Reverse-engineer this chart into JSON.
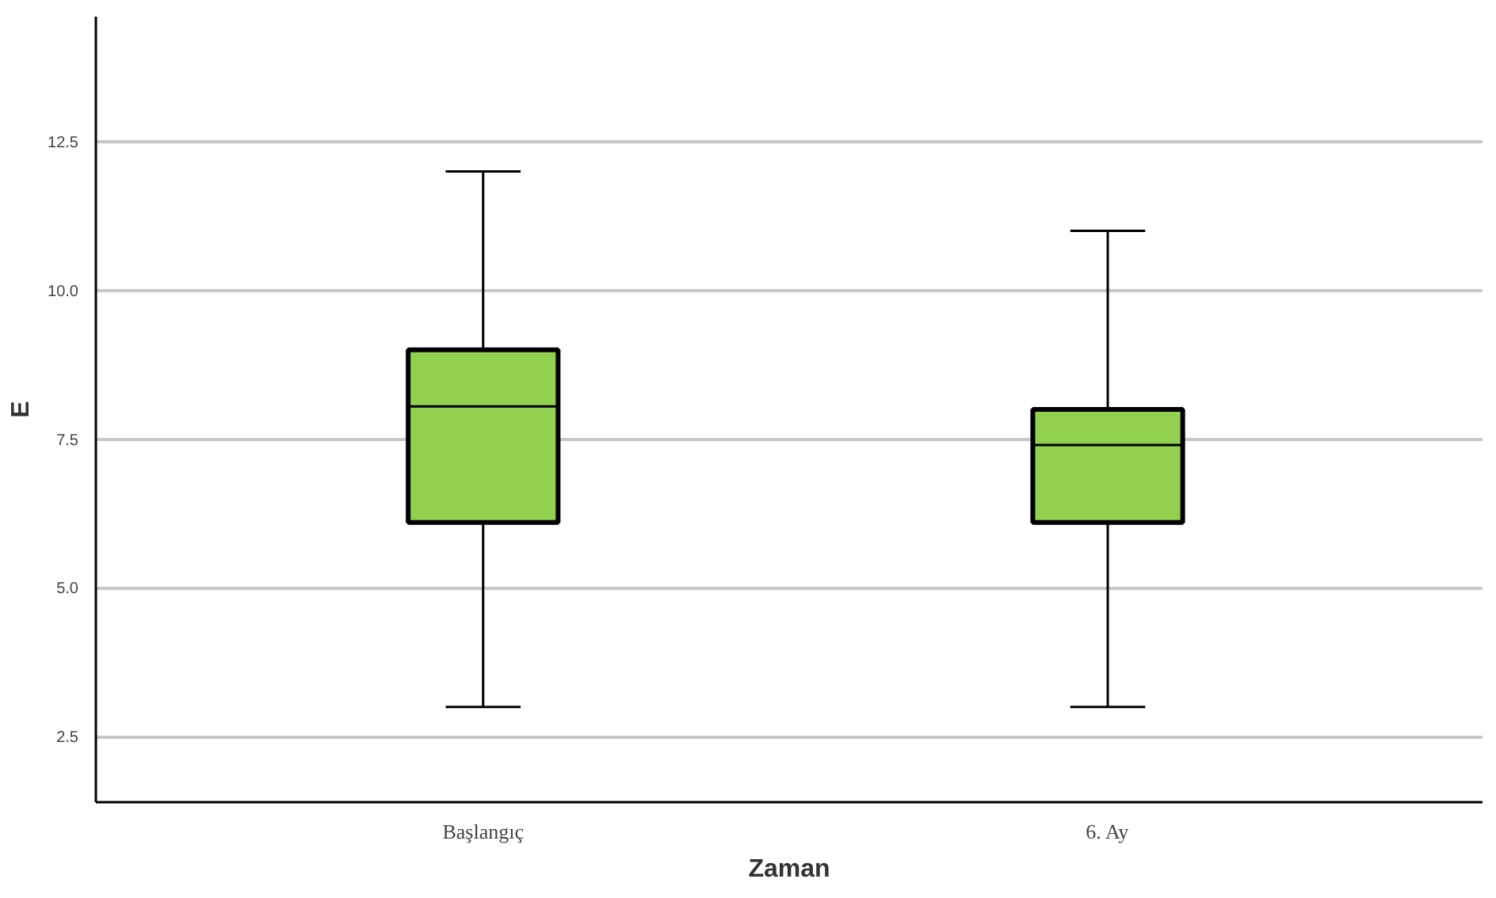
{
  "chart_data": {
    "type": "box",
    "xlabel": "Zaman",
    "ylabel": "E",
    "categories": [
      "Başlangıç",
      "6. Ay"
    ],
    "boxes": [
      {
        "low": 3.0,
        "q1": 6.1,
        "median": 8.05,
        "q3": 9.0,
        "high": 12.0
      },
      {
        "low": 3.0,
        "q1": 6.1,
        "median": 7.4,
        "q3": 8.0,
        "high": 11.0
      }
    ],
    "color": "#92d050",
    "ylim": [
      1.4,
      14.6
    ],
    "yticks": [
      2.5,
      {
        "value": 5,
        "label": "5.0"
      },
      7.5,
      {
        "value": 10,
        "label": "10.0"
      },
      12.5
    ],
    "grid": "y"
  }
}
